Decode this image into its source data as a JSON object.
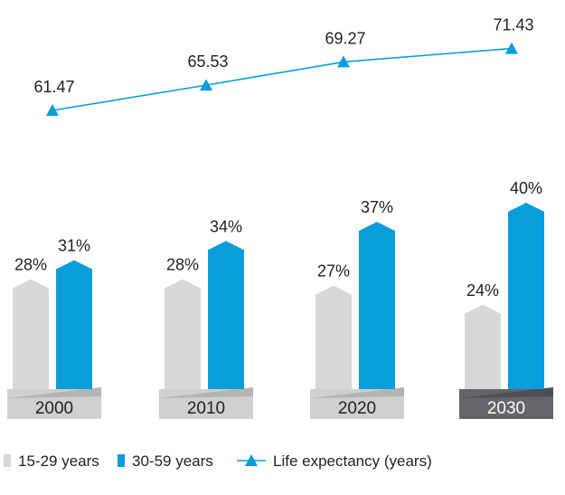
{
  "chart_data": {
    "type": "bar",
    "categories": [
      "2000",
      "2010",
      "2020",
      "2030"
    ],
    "series": [
      {
        "name": "15-29 years",
        "type": "bar",
        "values": [
          28,
          28,
          27,
          24
        ],
        "labels": [
          "28%",
          "28%",
          "27%",
          "24%"
        ]
      },
      {
        "name": "30-59 years",
        "type": "bar",
        "values": [
          31,
          34,
          37,
          40
        ],
        "labels": [
          "31%",
          "34%",
          "37%",
          "40%"
        ]
      },
      {
        "name": "Life expectancy (years)",
        "type": "line",
        "values": [
          61.47,
          65.53,
          69.27,
          71.43
        ],
        "labels": [
          "61.47",
          "65.53",
          "69.27",
          "71.43"
        ]
      }
    ],
    "highlighted_category": "2030",
    "legend_position": "bottom"
  },
  "legend": {
    "items": [
      "15-29 years",
      "30-59 years",
      "Life expectancy (years)"
    ]
  },
  "colors": {
    "series_15_29": "#d7d8d9",
    "series_30_59": "#0a9ddc",
    "line": "#0a9ddc",
    "base": "#cfd0d1",
    "base_highlight": "#646568"
  }
}
